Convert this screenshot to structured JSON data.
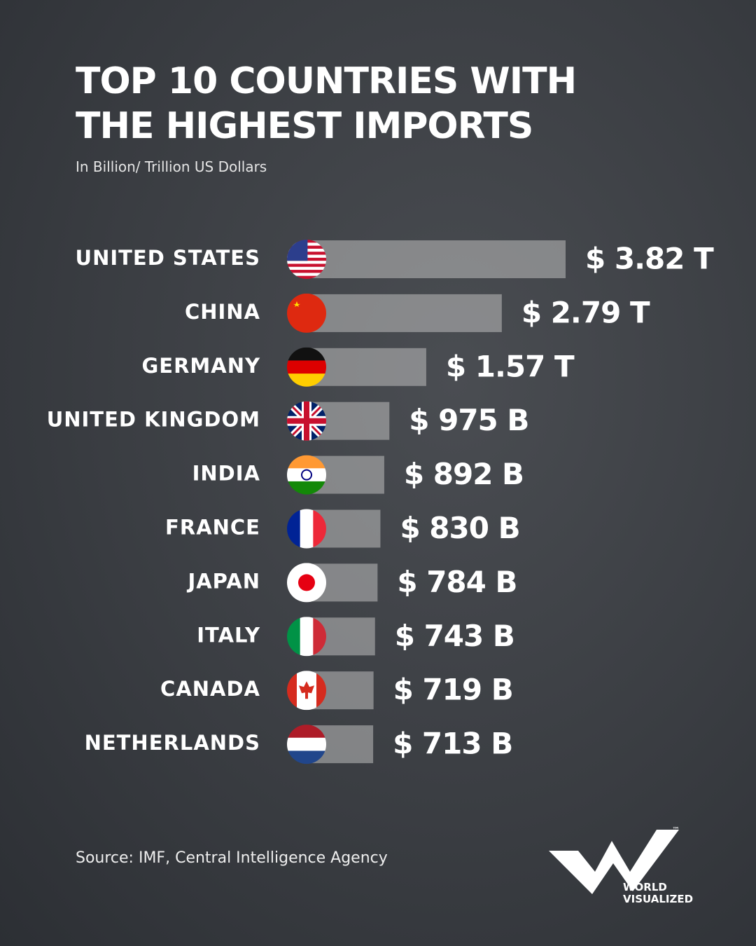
{
  "chart_data": {
    "type": "bar",
    "orientation": "horizontal",
    "title": "TOP 10 COUNTRIES WITH THE HIGHEST IMPORTS",
    "subtitle": "In Billion/ Trillion US Dollars",
    "categories": [
      "UNITED STATES",
      "CHINA",
      "GERMANY",
      "UNITED KINGDOM",
      "INDIA",
      "FRANCE",
      "JAPAN",
      "ITALY",
      "CANADA",
      "NETHERLANDS"
    ],
    "values": [
      3820,
      2790,
      1570,
      975,
      892,
      830,
      784,
      743,
      719,
      713
    ],
    "value_labels": [
      "$ 3.82 T",
      "$ 2.79 T",
      "$ 1.57 T",
      "$ 975 B",
      "$ 892 B",
      "$ 830 B",
      "$ 784 B",
      "$ 743 B",
      "$ 719 B",
      "$ 713 B"
    ],
    "color": "#bdbdbd"
  },
  "footer": {
    "source": "Source: IMF, Central Intelligence Agency",
    "brand": [
      "WORLD",
      "VISUALIZED"
    ],
    "trademark": "™"
  }
}
